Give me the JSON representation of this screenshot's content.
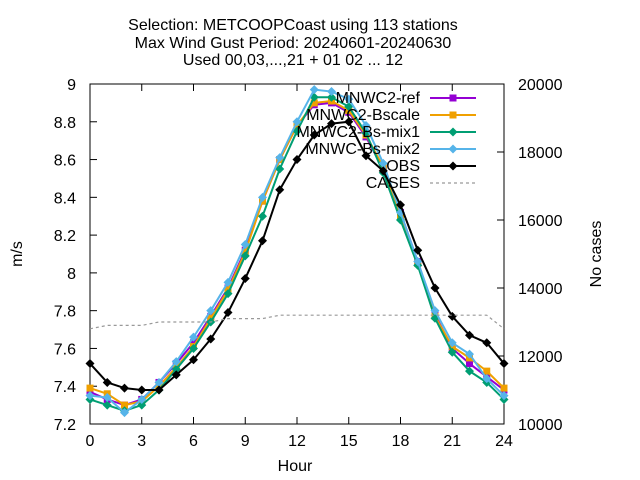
{
  "chart_data": {
    "type": "line",
    "title_lines": [
      "Selection: METCOOPCoast using   113 stations",
      "Max Wind Gust   Period: 20240601-20240630",
      "Used 00,03,...,21 + 01 02 ... 12"
    ],
    "xlabel": "Hour",
    "ylabel": "m/s",
    "y2label": "No cases",
    "xlim": [
      0,
      24
    ],
    "ylim": [
      7.2,
      9.0
    ],
    "y2lim": [
      10000,
      20000
    ],
    "xticks": [
      "0",
      "3",
      "6",
      "9",
      "12",
      "15",
      "18",
      "21",
      "24"
    ],
    "yticks": [
      "7.2",
      "7.4",
      "7.6",
      "7.8",
      "8",
      "8.2",
      "8.4",
      "8.6",
      "8.8",
      "9"
    ],
    "y2ticks": [
      "10000",
      "12000",
      "14000",
      "16000",
      "18000",
      "20000"
    ],
    "grid": false,
    "legend_position": "top-right",
    "x": [
      0,
      1,
      2,
      3,
      4,
      5,
      6,
      7,
      8,
      9,
      10,
      11,
      12,
      13,
      14,
      15,
      16,
      17,
      18,
      19,
      20,
      21,
      22,
      23,
      24
    ],
    "series": [
      {
        "name": "MNWC2-ref",
        "color": "#9400d3",
        "marker": "square",
        "values": [
          7.37,
          7.33,
          7.3,
          7.33,
          7.42,
          7.52,
          7.63,
          7.77,
          7.92,
          8.12,
          8.38,
          8.6,
          8.78,
          8.89,
          8.9,
          8.85,
          8.72,
          8.55,
          8.32,
          8.06,
          7.78,
          7.6,
          7.52,
          7.45,
          7.38
        ]
      },
      {
        "name": "MNWC2-Bscale",
        "color": "#f0a000",
        "marker": "square",
        "values": [
          7.39,
          7.36,
          7.3,
          7.32,
          7.4,
          7.5,
          7.61,
          7.76,
          7.91,
          8.11,
          8.38,
          8.6,
          8.78,
          8.9,
          8.91,
          8.86,
          8.73,
          8.56,
          8.3,
          8.05,
          7.77,
          7.61,
          7.55,
          7.48,
          7.39
        ]
      },
      {
        "name": "MNWC2-Bs-mix1",
        "color": "#009e73",
        "marker": "diamond",
        "values": [
          7.33,
          7.3,
          7.27,
          7.3,
          7.38,
          7.49,
          7.6,
          7.74,
          7.89,
          8.09,
          8.3,
          8.55,
          8.75,
          8.93,
          8.93,
          8.88,
          8.74,
          8.53,
          8.28,
          8.04,
          7.76,
          7.58,
          7.48,
          7.42,
          7.33
        ]
      },
      {
        "name": "MNWC-Bs-mix2",
        "color": "#56b4e9",
        "marker": "diamond",
        "values": [
          7.35,
          7.34,
          7.26,
          7.33,
          7.42,
          7.53,
          7.66,
          7.8,
          7.95,
          8.15,
          8.4,
          8.61,
          8.8,
          8.97,
          8.96,
          8.92,
          8.78,
          8.58,
          8.32,
          8.06,
          7.8,
          7.63,
          7.57,
          7.44,
          7.35
        ]
      },
      {
        "name": "OBS",
        "color": "#000000",
        "marker": "diamond",
        "values": [
          7.52,
          7.42,
          7.39,
          7.38,
          7.38,
          7.46,
          7.54,
          7.65,
          7.79,
          7.97,
          8.17,
          8.44,
          8.6,
          8.73,
          8.79,
          8.8,
          8.62,
          8.54,
          8.36,
          8.12,
          7.92,
          7.77,
          7.67,
          7.63,
          7.52
        ]
      },
      {
        "name": "CASES",
        "color": "#999999",
        "dashed": true,
        "axis": "y2",
        "values": [
          12800,
          12900,
          12900,
          12900,
          13000,
          13000,
          13000,
          13000,
          13100,
          13100,
          13100,
          13200,
          13200,
          13200,
          13200,
          13200,
          13200,
          13200,
          13200,
          13200,
          13200,
          13200,
          13200,
          13200,
          12800
        ]
      }
    ]
  }
}
